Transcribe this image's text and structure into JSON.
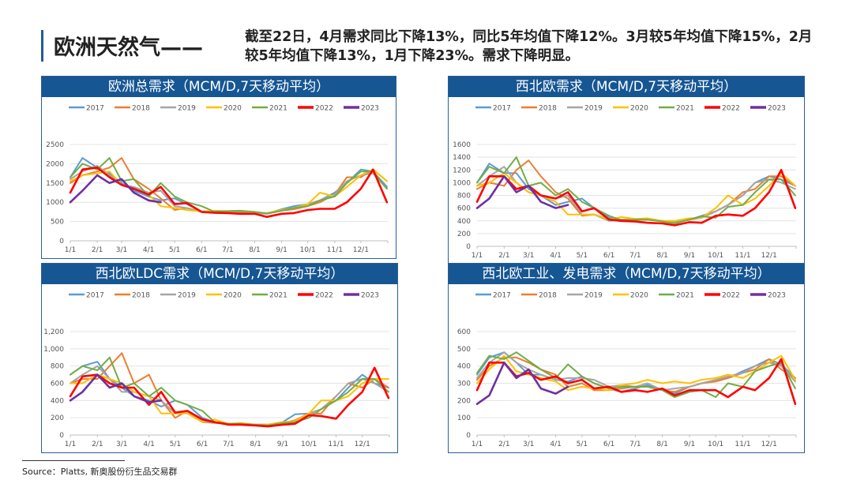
{
  "header": {
    "title": "欧洲天然气——",
    "description": "截至22日，4月需求同比下降13%，同比5年均值下降12%。3月较5年均值下降15%，2月较5年均值下降13%，1月下降23%。需求下降明显。"
  },
  "source": "Source：Platts, 新奥股份衍生品交易群",
  "colors": {
    "2017": "#5b9bd5",
    "2018": "#ed7d31",
    "2019": "#a5a5a5",
    "2020": "#ffc000",
    "2021": "#70ad47",
    "2022": "#ff0000",
    "2023": "#7030a0",
    "title_bar": "#165693"
  },
  "chart_data": [
    {
      "type": "line",
      "title": "欧洲总需求（MCM/D,7天移动平均）",
      "x_tick_labels": [
        "1/1",
        "2/1",
        "3/1",
        "4/1",
        "5/1",
        "6/1",
        "7/1",
        "8/1",
        "9/1",
        "10/1",
        "11/1",
        "12/1"
      ],
      "y_ticks": [
        "0",
        "500",
        "1000",
        "1500",
        "2000",
        "2500"
      ],
      "ylim": [
        0,
        2500
      ],
      "grid": true,
      "legend": "top",
      "x": [
        "1/1",
        "1/15",
        "2/1",
        "2/15",
        "3/1",
        "3/15",
        "4/1",
        "4/15",
        "5/1",
        "5/15",
        "6/1",
        "6/15",
        "7/1",
        "7/15",
        "8/1",
        "8/15",
        "9/1",
        "9/15",
        "10/1",
        "10/15",
        "11/1",
        "11/15",
        "12/1",
        "12/15",
        "12/31"
      ],
      "series": [
        {
          "name": "2017",
          "values": [
            1650,
            2150,
            1900,
            1750,
            1500,
            1300,
            1150,
            1050,
            1100,
            950,
            750,
            750,
            750,
            750,
            720,
            700,
            820,
            900,
            950,
            1050,
            1250,
            1500,
            1850,
            1800,
            1400
          ]
        },
        {
          "name": "2018",
          "values": [
            1500,
            1700,
            1800,
            1900,
            2150,
            1600,
            1350,
            1100,
            800,
            850,
            750,
            750,
            750,
            750,
            740,
            700,
            780,
            820,
            900,
            1000,
            1200,
            1650,
            1650,
            1850,
            1550
          ]
        },
        {
          "name": "2019",
          "values": [
            1600,
            1800,
            1950,
            1700,
            1450,
            1400,
            1250,
            1300,
            900,
            850,
            750,
            760,
            760,
            770,
            730,
            700,
            800,
            850,
            950,
            1050,
            1200,
            1550,
            1700,
            1750,
            1350
          ]
        },
        {
          "name": "2020",
          "values": [
            1550,
            1700,
            1750,
            1800,
            1450,
            1350,
            1200,
            900,
            850,
            800,
            760,
            780,
            770,
            780,
            740,
            720,
            800,
            850,
            950,
            1250,
            1150,
            1400,
            1700,
            1850,
            1550
          ]
        },
        {
          "name": "2021",
          "values": [
            1650,
            2000,
            1850,
            2150,
            1550,
            1600,
            1150,
            1500,
            1150,
            1000,
            900,
            760,
            770,
            780,
            750,
            710,
            780,
            850,
            900,
            1050,
            1150,
            1500,
            1800,
            1800,
            1350
          ]
        },
        {
          "name": "2022",
          "values": [
            1250,
            1850,
            1900,
            1650,
            1450,
            1350,
            1200,
            1400,
            950,
            980,
            750,
            730,
            720,
            700,
            700,
            620,
            700,
            720,
            800,
            830,
            830,
            1000,
            1350,
            1850,
            1000
          ]
        },
        {
          "name": "2023",
          "values": [
            1000,
            1300,
            1700,
            1500,
            1600,
            1250,
            1050,
            1000,
            null,
            null,
            null,
            null,
            null,
            null,
            null,
            null,
            null,
            null,
            null,
            null,
            null,
            null,
            null,
            null,
            null
          ]
        }
      ]
    },
    {
      "type": "line",
      "title": "西北欧需求（MCM/D,7天移动平均）",
      "x_tick_labels": [
        "1/1",
        "2/1",
        "3/1",
        "4/1",
        "5/1",
        "6/1",
        "7/1",
        "8/1",
        "9/1",
        "10/1",
        "11/1",
        "12/1"
      ],
      "y_ticks": [
        "0",
        "200",
        "400",
        "600",
        "800",
        "1000",
        "1200",
        "1400",
        "1600"
      ],
      "ylim": [
        0,
        1600
      ],
      "grid": true,
      "legend": "top",
      "x": [
        "1/1",
        "1/15",
        "2/1",
        "2/15",
        "3/1",
        "3/15",
        "4/1",
        "4/15",
        "5/1",
        "5/15",
        "6/1",
        "6/15",
        "7/1",
        "7/15",
        "8/1",
        "8/15",
        "9/1",
        "9/15",
        "10/1",
        "10/15",
        "11/1",
        "11/15",
        "12/1",
        "12/15",
        "12/31"
      ],
      "series": [
        {
          "name": "2017",
          "values": [
            1000,
            1300,
            1150,
            1150,
            900,
            800,
            650,
            700,
            750,
            600,
            450,
            420,
            420,
            420,
            400,
            380,
            420,
            480,
            550,
            650,
            800,
            1000,
            1100,
            1050,
            950
          ]
        },
        {
          "name": "2018",
          "values": [
            900,
            1000,
            950,
            1200,
            1350,
            1100,
            850,
            750,
            480,
            500,
            420,
            420,
            420,
            420,
            400,
            380,
            420,
            450,
            550,
            650,
            850,
            900,
            1100,
            1100,
            950
          ]
        },
        {
          "name": "2019",
          "values": [
            950,
            1100,
            1250,
            1000,
            850,
            800,
            750,
            800,
            500,
            500,
            400,
            410,
            410,
            420,
            400,
            380,
            430,
            450,
            550,
            650,
            800,
            1000,
            1050,
            1000,
            900
          ]
        },
        {
          "name": "2020",
          "values": [
            950,
            1000,
            1150,
            1000,
            850,
            800,
            700,
            500,
            500,
            500,
            420,
            460,
            430,
            440,
            400,
            400,
            440,
            450,
            600,
            800,
            650,
            750,
            950,
            1150,
            950
          ]
        },
        {
          "name": "2021",
          "values": [
            1000,
            1250,
            1150,
            1400,
            950,
            1000,
            800,
            900,
            700,
            600,
            480,
            410,
            420,
            420,
            390,
            360,
            420,
            470,
            450,
            620,
            650,
            850,
            1050,
            1050,
            800
          ]
        },
        {
          "name": "2022",
          "values": [
            700,
            1100,
            1100,
            900,
            950,
            800,
            750,
            850,
            550,
            600,
            420,
            400,
            390,
            370,
            360,
            330,
            380,
            370,
            480,
            500,
            480,
            600,
            850,
            1200,
            600
          ]
        },
        {
          "name": "2023",
          "values": [
            600,
            750,
            1100,
            850,
            950,
            700,
            600,
            650,
            null,
            null,
            null,
            null,
            null,
            null,
            null,
            null,
            null,
            null,
            null,
            null,
            null,
            null,
            null,
            null,
            null
          ]
        }
      ]
    },
    {
      "type": "line",
      "title": "西北欧LDC需求（MCM/D,7天移动平均）",
      "x_tick_labels": [
        "1/1",
        "2/1",
        "3/1",
        "4/1",
        "5/1",
        "6/1",
        "7/1",
        "8/1",
        "9/1",
        "10/1",
        "11/1",
        "12/1"
      ],
      "y_ticks": [
        "0",
        "200",
        "400",
        "600",
        "800",
        "1,000",
        "1,200"
      ],
      "ylim": [
        0,
        1200
      ],
      "grid": true,
      "legend": "top",
      "x": [
        "1/1",
        "1/15",
        "2/1",
        "2/15",
        "3/1",
        "3/15",
        "4/1",
        "4/15",
        "5/1",
        "5/15",
        "6/1",
        "6/15",
        "7/1",
        "7/15",
        "8/1",
        "8/15",
        "9/1",
        "9/15",
        "10/1",
        "10/15",
        "11/1",
        "11/15",
        "12/1",
        "12/15",
        "12/31"
      ],
      "series": [
        {
          "name": "2017",
          "values": [
            700,
            800,
            850,
            650,
            550,
            450,
            400,
            330,
            400,
            350,
            200,
            150,
            130,
            130,
            120,
            120,
            150,
            240,
            250,
            300,
            400,
            550,
            700,
            600,
            550
          ]
        },
        {
          "name": "2018",
          "values": [
            600,
            650,
            650,
            800,
            950,
            600,
            700,
            400,
            200,
            280,
            150,
            140,
            130,
            130,
            120,
            120,
            140,
            170,
            250,
            250,
            450,
            600,
            550,
            650,
            550
          ]
        },
        {
          "name": "2019",
          "values": [
            600,
            700,
            800,
            650,
            500,
            500,
            450,
            400,
            250,
            270,
            150,
            150,
            130,
            130,
            120,
            120,
            140,
            160,
            250,
            300,
            450,
            600,
            650,
            600,
            500
          ]
        },
        {
          "name": "2020",
          "values": [
            600,
            600,
            700,
            650,
            600,
            500,
            450,
            250,
            250,
            250,
            150,
            180,
            130,
            140,
            120,
            120,
            150,
            160,
            250,
            400,
            400,
            450,
            600,
            650,
            650
          ]
        },
        {
          "name": "2021",
          "values": [
            700,
            800,
            750,
            900,
            550,
            600,
            450,
            550,
            400,
            350,
            280,
            150,
            130,
            130,
            120,
            110,
            140,
            150,
            200,
            300,
            400,
            500,
            650,
            650,
            500
          ]
        },
        {
          "name": "2022",
          "values": [
            450,
            680,
            700,
            600,
            550,
            550,
            350,
            500,
            260,
            280,
            180,
            150,
            120,
            120,
            110,
            100,
            120,
            130,
            230,
            220,
            190,
            350,
            500,
            780,
            430
          ]
        },
        {
          "name": "2023",
          "values": [
            400,
            500,
            700,
            550,
            600,
            450,
            380,
            400,
            null,
            null,
            null,
            null,
            null,
            null,
            null,
            null,
            null,
            null,
            null,
            null,
            null,
            null,
            null,
            null,
            null
          ]
        }
      ]
    },
    {
      "type": "line",
      "title": "西北欧工业、发电需求（MCM/D,7天移动平均）",
      "x_tick_labels": [
        "1/1",
        "2/1",
        "3/1",
        "4/1",
        "5/1",
        "6/1",
        "7/1",
        "8/1",
        "9/1",
        "10/1",
        "11/1",
        "12/1"
      ],
      "y_ticks": [
        "0",
        "100",
        "200",
        "300",
        "400",
        "500",
        "600"
      ],
      "ylim": [
        0,
        600
      ],
      "grid": true,
      "legend": "top",
      "x": [
        "1/1",
        "1/15",
        "2/1",
        "2/15",
        "3/1",
        "3/15",
        "4/1",
        "4/15",
        "5/1",
        "5/15",
        "6/1",
        "6/15",
        "7/1",
        "7/15",
        "8/1",
        "8/15",
        "9/1",
        "9/15",
        "10/1",
        "10/15",
        "11/1",
        "11/15",
        "12/1",
        "12/15",
        "12/31"
      ],
      "series": [
        {
          "name": "2017",
          "values": [
            350,
            450,
            480,
            420,
            350,
            350,
            320,
            310,
            340,
            300,
            270,
            250,
            270,
            290,
            260,
            240,
            280,
            300,
            320,
            330,
            370,
            400,
            440,
            410,
            330
          ]
        },
        {
          "name": "2018",
          "values": [
            320,
            400,
            450,
            450,
            420,
            380,
            350,
            280,
            300,
            260,
            260,
            270,
            280,
            280,
            260,
            250,
            280,
            300,
            310,
            330,
            360,
            380,
            440,
            380,
            330
          ]
        },
        {
          "name": "2019",
          "values": [
            330,
            420,
            480,
            420,
            380,
            350,
            320,
            330,
            330,
            320,
            280,
            290,
            280,
            300,
            260,
            270,
            280,
            300,
            320,
            340,
            360,
            400,
            420,
            400,
            310
          ]
        },
        {
          "name": "2020",
          "values": [
            300,
            380,
            460,
            370,
            350,
            330,
            310,
            260,
            280,
            270,
            260,
            290,
            300,
            320,
            300,
            310,
            300,
            320,
            330,
            350,
            330,
            370,
            420,
            460,
            320
          ]
        },
        {
          "name": "2021",
          "values": [
            360,
            460,
            440,
            480,
            430,
            380,
            330,
            410,
            340,
            300,
            270,
            280,
            280,
            280,
            260,
            220,
            250,
            260,
            220,
            300,
            280,
            370,
            400,
            420,
            270
          ]
        },
        {
          "name": "2022",
          "values": [
            260,
            420,
            420,
            340,
            360,
            320,
            340,
            300,
            320,
            270,
            280,
            250,
            260,
            250,
            270,
            230,
            260,
            260,
            260,
            220,
            280,
            260,
            330,
            440,
            180
          ]
        },
        {
          "name": "2023",
          "values": [
            180,
            230,
            420,
            330,
            380,
            270,
            240,
            280,
            null,
            null,
            null,
            null,
            null,
            null,
            null,
            null,
            null,
            null,
            null,
            null,
            null,
            null,
            null,
            null,
            null
          ]
        }
      ]
    }
  ]
}
